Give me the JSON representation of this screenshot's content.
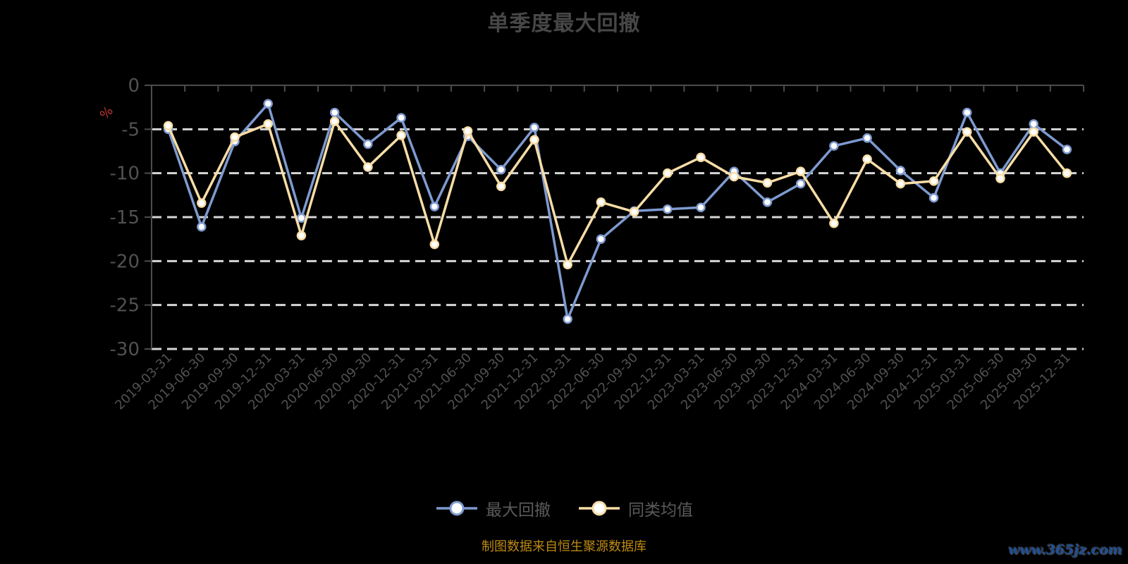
{
  "page": {
    "title": "单季度最大回撤",
    "footer": "制图数据来自恒生聚源数据库",
    "watermark": "www.365jz.com"
  },
  "legend": [
    {
      "id": "max-drawdown",
      "label": "最大回撤",
      "color": "#7e9ad0"
    },
    {
      "id": "peer-average",
      "label": "同类均值",
      "color": "#f8dda6"
    }
  ],
  "colors": {
    "background": "#000000",
    "title_text": "#474747",
    "axis_line": "#4c4c4c",
    "axis_label": "#515151",
    "gridline": "#d6d6d6",
    "axis_name_percent": "#c23531",
    "series_max_drawdown": "#7e9ad0",
    "series_peer_average": "#f8dda6",
    "marker_fill": "#ffffff",
    "footer_text": "#bd8a12",
    "watermark_text": "#1e4f99"
  },
  "chart_data": {
    "type": "line",
    "title": "单季度最大回撤",
    "xlabel": "",
    "ylabel": "%",
    "ylim": [
      -30,
      0
    ],
    "yticks": [
      0,
      -5,
      -10,
      -15,
      -20,
      -25,
      -30
    ],
    "grid": "horizontal dashed",
    "legend_position": "bottom",
    "categories": [
      "2019-03-31",
      "2019-06-30",
      "2019-09-30",
      "2019-12-31",
      "2020-03-31",
      "2020-06-30",
      "2020-09-30",
      "2020-12-31",
      "2021-03-31",
      "2021-06-30",
      "2021-09-30",
      "2021-12-31",
      "2022-03-31",
      "2022-06-30",
      "2022-09-30",
      "2022-12-31",
      "2023-03-31",
      "2023-06-30",
      "2023-09-30",
      "2023-12-31",
      "2024-03-31",
      "2024-06-30",
      "2024-09-30",
      "2024-12-31",
      "2025-03-31",
      "2025-06-30",
      "2025-09-30",
      "2025-12-31"
    ],
    "series": [
      {
        "name": "最大回撤",
        "color": "#7e9ad0",
        "values": [
          -5.0,
          -16.1,
          -6.4,
          -2.1,
          -15.1,
          -3.1,
          -6.7,
          -3.7,
          -13.8,
          -5.8,
          -9.6,
          -4.8,
          -26.6,
          -17.5,
          -14.3,
          -14.1,
          -13.9,
          -9.8,
          -13.3,
          -11.2,
          -6.9,
          -6.0,
          -9.7,
          -12.8,
          -3.1,
          -10.0,
          -4.4,
          -7.3
        ]
      },
      {
        "name": "同类均值",
        "color": "#f8dda6",
        "values": [
          -4.6,
          -13.4,
          -5.9,
          -4.4,
          -17.1,
          -4.1,
          -9.3,
          -5.7,
          -18.1,
          -5.2,
          -11.5,
          -6.2,
          -20.4,
          -13.3,
          -14.4,
          -10.0,
          -8.2,
          -10.4,
          -11.1,
          -9.8,
          -15.7,
          -8.4,
          -11.2,
          -10.9,
          -5.3,
          -10.6,
          -5.3,
          -10.0
        ]
      }
    ]
  }
}
